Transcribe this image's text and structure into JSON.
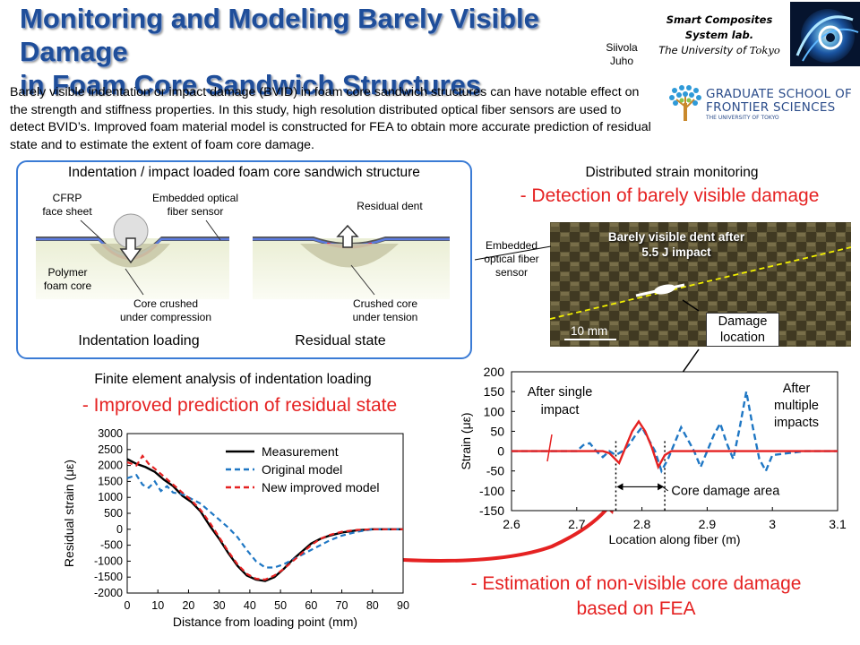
{
  "header": {
    "title_line1": "Monitoring and Modeling Barely Visible Damage",
    "title_line2": "in Foam Core Sandwich Structures",
    "author1": "Siivola",
    "author2": "Juho",
    "lab_line1": "Smart Composites",
    "lab_line2": "System lab.",
    "lab_line3a": "The University of ",
    "lab_line3b": "Tokyo"
  },
  "intro": "Barely visible indentation or impact damage (BVID) in foam core sandwich structures can have notable effect on the strength and stiffness properties. In this study, high resolution distributed optical fiber sensors are used to detect BVID’s. Improved foam material model is constructed for FEA to obtain more accurate prediction of residual state and to estimate the extent of foam core damage.",
  "gsfs": {
    "line1": "GRADUATE SCHOOL OF",
    "line2": "FRONTIER SCIENCES",
    "line3": "THE UNIVERSITY OF TOKYO"
  },
  "diagram": {
    "heading": "Indentation / impact loaded foam core sandwich structure",
    "cfrp": [
      "CFRP",
      "face sheet"
    ],
    "fiber": [
      "Embedded optical",
      "fiber sensor"
    ],
    "residual_dent": "Residual dent",
    "foam": [
      "Polymer",
      "foam core"
    ],
    "core_compress": [
      "Core crushed",
      "under compression"
    ],
    "core_tension": [
      "Crushed core",
      "under tension"
    ],
    "cap_left": "Indentation loading",
    "cap_right": "Residual state"
  },
  "monitoring": {
    "heading": "Distributed strain monitoring",
    "subheading": "- Detection of barely visible damage",
    "sensor_label": [
      "Embedded",
      "optical fiber",
      "sensor"
    ],
    "photo_text": [
      "Barely visible dent after",
      "5.5 J impact"
    ],
    "scale": "10 mm",
    "damage_label": [
      "Damage",
      "location"
    ]
  },
  "fea": {
    "heading": "Finite element analysis of indentation loading",
    "subheading": "- Improved prediction of residual state"
  },
  "estimation": {
    "line1": "- Estimation of non-visible core damage",
    "line2": "based on FEA"
  },
  "colors": {
    "title": "#1f4e9a",
    "accent_red": "#e52222",
    "panel_border": "#3a7bd5",
    "series_blue": "#1f77c4"
  },
  "chart_data": [
    {
      "type": "line",
      "xlabel": "Distance from loading point (mm)",
      "ylabel": "Residual strain (με)",
      "xlim": [
        0,
        90
      ],
      "ylim": [
        -2000,
        3000
      ],
      "xticks": [
        0,
        10,
        20,
        30,
        40,
        50,
        60,
        70,
        80,
        90
      ],
      "yticks": [
        3000,
        2500,
        2000,
        1500,
        1000,
        500,
        0,
        -500,
        -1000,
        -1500,
        -2000
      ],
      "legend_position": "top-right",
      "series": [
        {
          "name": "Measurement",
          "color": "#000000",
          "style": "solid",
          "x": [
            0,
            3,
            6,
            9,
            12,
            15,
            18,
            21,
            24,
            27,
            30,
            33,
            36,
            39,
            42,
            45,
            48,
            51,
            54,
            57,
            60,
            63,
            66,
            70,
            75,
            80,
            85,
            90
          ],
          "y": [
            2200,
            2050,
            1950,
            1800,
            1550,
            1350,
            1050,
            850,
            550,
            100,
            -300,
            -750,
            -1150,
            -1450,
            -1580,
            -1620,
            -1500,
            -1250,
            -950,
            -700,
            -450,
            -300,
            -200,
            -100,
            -30,
            0,
            0,
            0
          ]
        },
        {
          "name": "Original model",
          "color": "#1f77c4",
          "style": "dashed",
          "x": [
            0,
            3,
            5,
            7,
            9,
            11,
            13,
            15,
            18,
            21,
            24,
            27,
            30,
            33,
            36,
            39,
            42,
            45,
            48,
            51,
            54,
            57,
            60,
            63,
            66,
            70,
            75,
            80,
            85,
            90
          ],
          "y": [
            1600,
            1700,
            1400,
            1300,
            1500,
            1200,
            1350,
            1150,
            1100,
            950,
            800,
            550,
            300,
            50,
            -250,
            -650,
            -1000,
            -1200,
            -1200,
            -1100,
            -950,
            -800,
            -650,
            -500,
            -350,
            -200,
            -80,
            0,
            0,
            0
          ]
        },
        {
          "name": "New improved model",
          "color": "#e52222",
          "style": "dashed",
          "x": [
            0,
            3,
            5,
            7,
            9,
            12,
            15,
            18,
            21,
            24,
            27,
            30,
            33,
            36,
            39,
            42,
            45,
            48,
            51,
            54,
            57,
            60,
            63,
            66,
            70,
            75,
            80,
            85,
            90
          ],
          "y": [
            2100,
            2000,
            2300,
            2050,
            1900,
            1650,
            1400,
            1150,
            900,
            600,
            200,
            -250,
            -700,
            -1100,
            -1400,
            -1550,
            -1580,
            -1450,
            -1250,
            -1000,
            -750,
            -500,
            -300,
            -180,
            -80,
            -20,
            0,
            0,
            0
          ]
        }
      ]
    },
    {
      "type": "line",
      "xlabel": "Location along fiber (m)",
      "ylabel": "Strain (με)",
      "xlim": [
        2.6,
        3.1
      ],
      "ylim": [
        -150,
        200
      ],
      "xticks": [
        2.6,
        2.7,
        2.8,
        2.9,
        3,
        3.1
      ],
      "yticks": [
        200,
        150,
        100,
        50,
        0,
        -50,
        -100,
        -150
      ],
      "annotations": [
        "After single impact",
        "After multiple impacts",
        "Core damage area"
      ],
      "core_damage_area": [
        2.76,
        2.835
      ],
      "series": [
        {
          "name": "After single impact",
          "color": "#e52222",
          "style": "solid",
          "x": [
            2.6,
            2.7,
            2.74,
            2.75,
            2.765,
            2.775,
            2.785,
            2.795,
            2.805,
            2.815,
            2.825,
            2.835,
            2.845,
            2.86,
            2.9,
            3.0,
            3.1
          ],
          "y": [
            0,
            0,
            0,
            -5,
            -30,
            10,
            50,
            75,
            50,
            10,
            -40,
            -10,
            0,
            0,
            0,
            0,
            0
          ]
        },
        {
          "name": "After multiple impacts",
          "color": "#1f77c4",
          "style": "dashed",
          "x": [
            2.6,
            2.7,
            2.71,
            2.72,
            2.73,
            2.74,
            2.75,
            2.76,
            2.77,
            2.78,
            2.79,
            2.8,
            2.81,
            2.82,
            2.83,
            2.84,
            2.85,
            2.86,
            2.87,
            2.88,
            2.89,
            2.9,
            2.91,
            2.92,
            2.93,
            2.94,
            2.95,
            2.96,
            2.97,
            2.98,
            2.99,
            3.0,
            3.05,
            3.1
          ],
          "y": [
            0,
            0,
            15,
            20,
            0,
            -15,
            0,
            -10,
            0,
            15,
            40,
            60,
            30,
            0,
            -50,
            -20,
            20,
            60,
            30,
            0,
            -40,
            0,
            40,
            70,
            20,
            -20,
            60,
            150,
            60,
            -20,
            -50,
            -10,
            0,
            0
          ]
        }
      ]
    }
  ]
}
